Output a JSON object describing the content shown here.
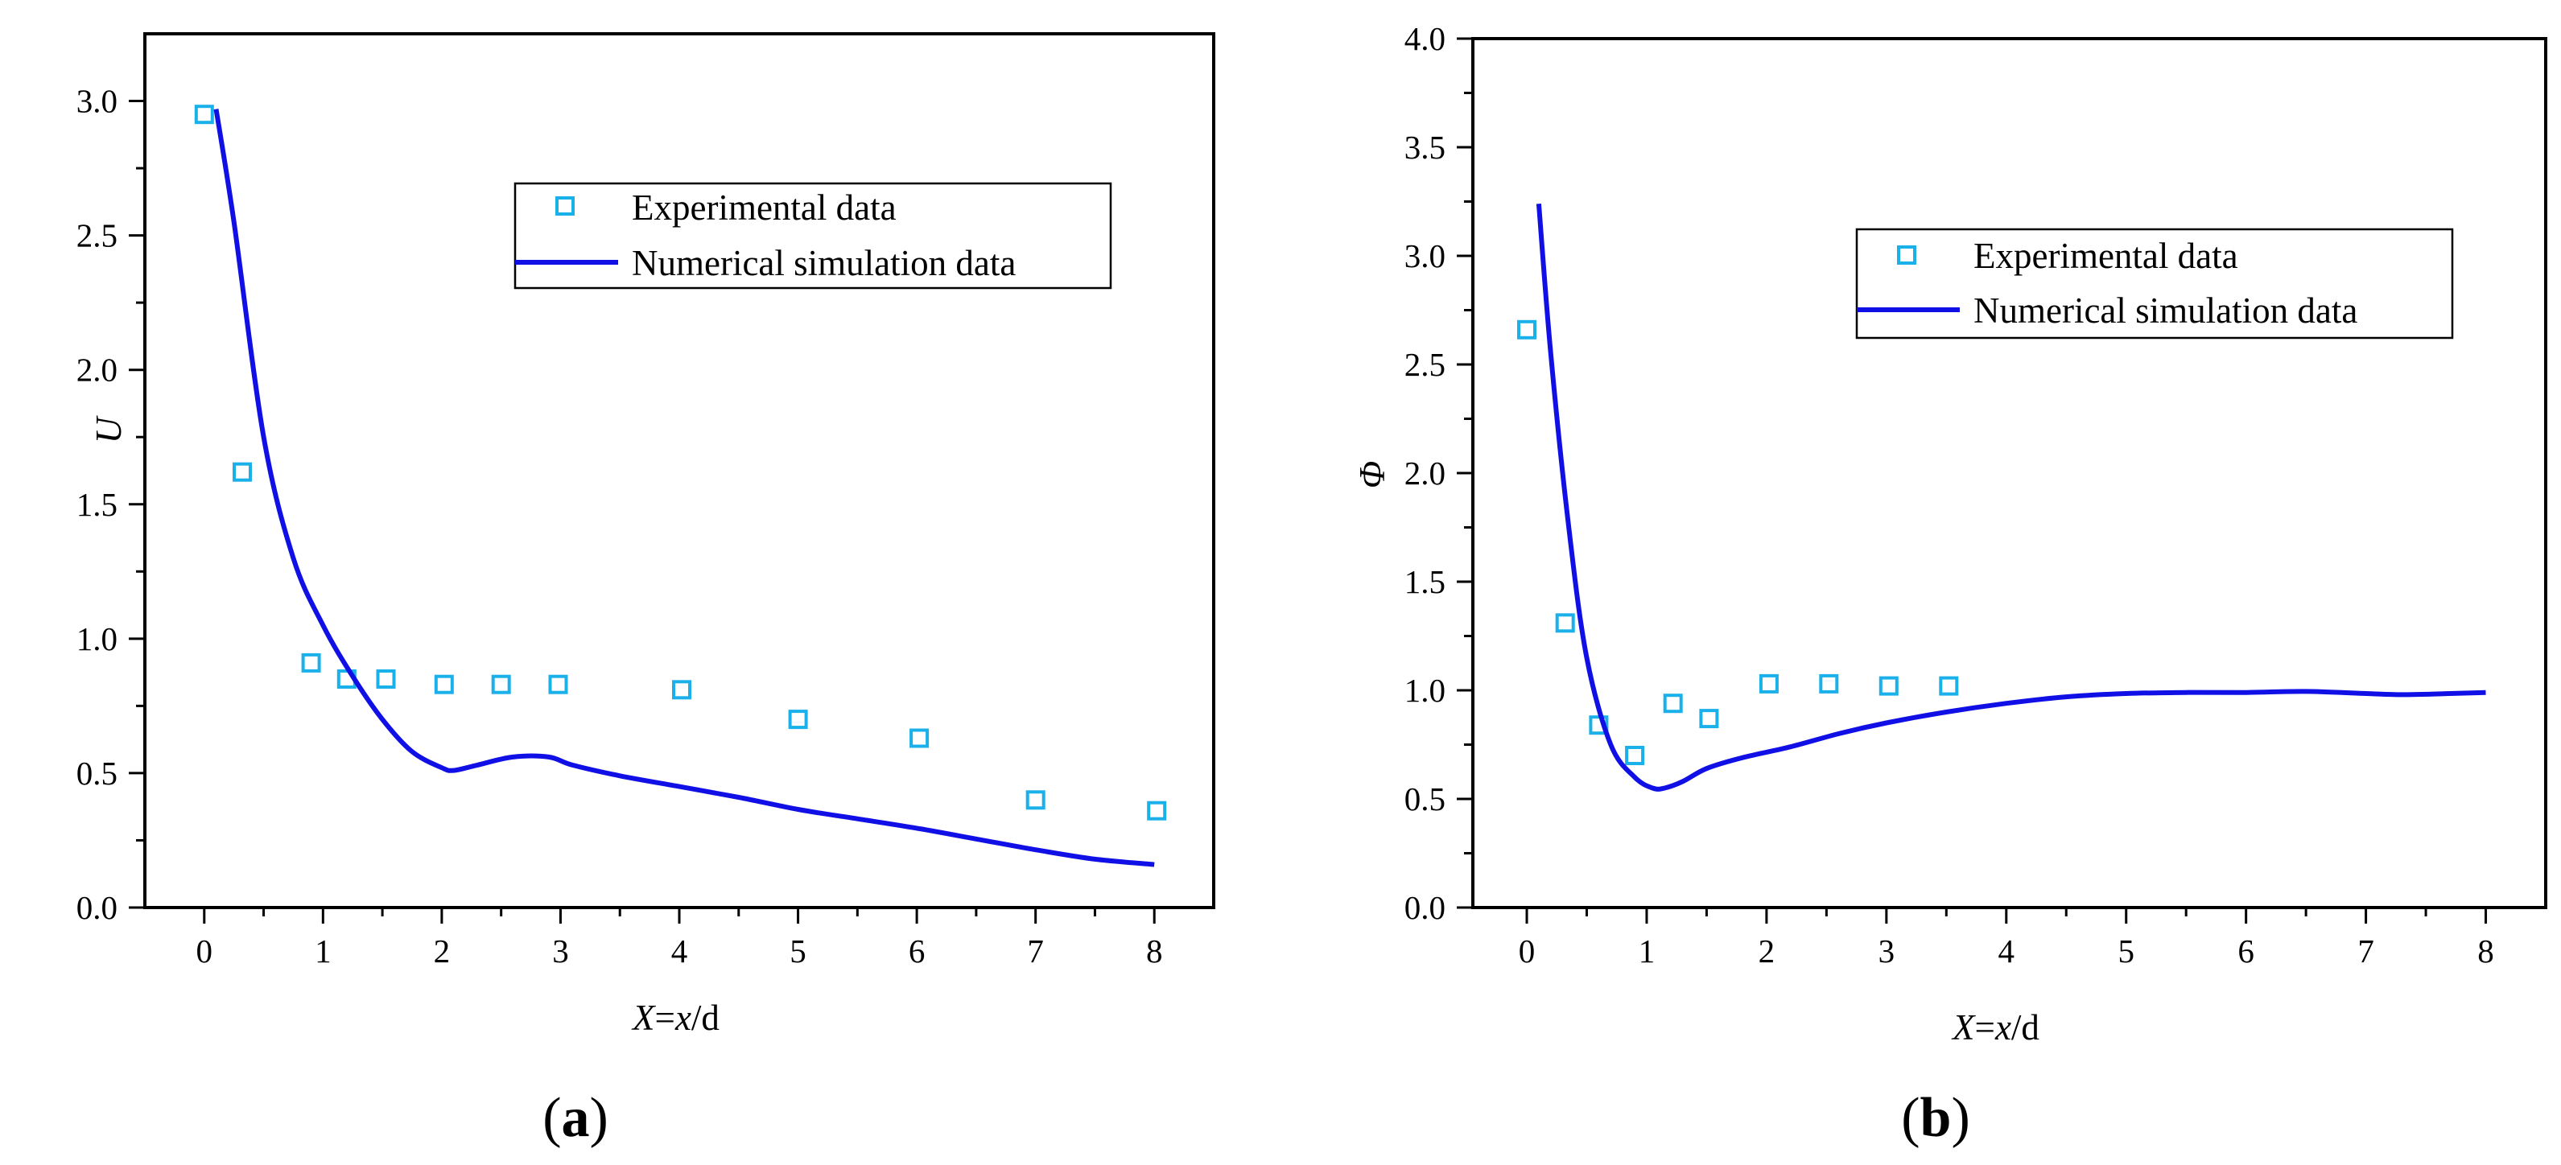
{
  "chart_data": [
    {
      "type": "line",
      "panel": "(a)",
      "panel_letter": "a",
      "xlabel": "X=x/d",
      "ylabel": "U",
      "xlim": [
        -0.5,
        8.5
      ],
      "ylim": [
        0,
        3.25
      ],
      "xticks": [
        0,
        1,
        2,
        3,
        4,
        5,
        6,
        7,
        8
      ],
      "yticks": [
        0.0,
        0.5,
        1.0,
        1.5,
        2.0,
        2.5,
        3.0
      ],
      "ytick_labels": [
        "0.0",
        "0.5",
        "1.0",
        "1.5",
        "2.0",
        "2.5",
        "3.0"
      ],
      "grid": false,
      "legend": {
        "position": "top-right",
        "entries": [
          "Experimental data",
          "Numerical simulation data"
        ]
      },
      "series": [
        {
          "name": "Experimental data",
          "style": "open-square-marker",
          "color": "#1ab0ea",
          "x": [
            0.0,
            0.32,
            0.9,
            1.2,
            1.53,
            2.02,
            2.5,
            2.98,
            4.02,
            5.0,
            6.02,
            7.0,
            8.02
          ],
          "y": [
            2.95,
            1.62,
            0.91,
            0.85,
            0.85,
            0.83,
            0.83,
            0.83,
            0.81,
            0.7,
            0.63,
            0.4,
            0.36
          ]
        },
        {
          "name": "Numerical simulation data",
          "style": "solid-line",
          "color": "#1010e6",
          "x": [
            0.1,
            0.25,
            0.5,
            0.75,
            1.0,
            1.25,
            1.5,
            1.75,
            2.0,
            2.1,
            2.3,
            2.6,
            2.9,
            3.1,
            3.5,
            4.0,
            4.5,
            5.0,
            5.5,
            6.0,
            6.5,
            7.0,
            7.5,
            8.0
          ],
          "y": [
            2.97,
            2.55,
            1.75,
            1.3,
            1.05,
            0.86,
            0.7,
            0.58,
            0.52,
            0.51,
            0.53,
            0.56,
            0.56,
            0.53,
            0.49,
            0.45,
            0.41,
            0.365,
            0.33,
            0.295,
            0.255,
            0.215,
            0.18,
            0.16
          ]
        }
      ]
    },
    {
      "type": "line",
      "panel": "(b)",
      "panel_letter": "b",
      "xlabel": "X=x/d",
      "ylabel": "Φ",
      "xlim": [
        -0.45,
        8.5
      ],
      "ylim": [
        0,
        4.0
      ],
      "xticks": [
        0,
        1,
        2,
        3,
        4,
        5,
        6,
        7,
        8
      ],
      "yticks": [
        0.0,
        0.5,
        1.0,
        1.5,
        2.0,
        2.5,
        3.0,
        3.5,
        4.0
      ],
      "ytick_labels": [
        "0.0",
        "0.5",
        "1.0",
        "1.5",
        "2.0",
        "2.5",
        "3.0",
        "3.5",
        "4.0"
      ],
      "grid": false,
      "legend": {
        "position": "top-right",
        "entries": [
          "Experimental data",
          "Numerical simulation data"
        ]
      },
      "series": [
        {
          "name": "Experimental data",
          "style": "open-square-marker",
          "color": "#1ab0ea",
          "x": [
            0.0,
            0.32,
            0.6,
            0.9,
            1.22,
            1.52,
            2.02,
            2.52,
            3.02,
            3.52
          ],
          "y": [
            2.66,
            1.31,
            0.84,
            0.7,
            0.94,
            0.87,
            1.03,
            1.03,
            1.02,
            1.02
          ]
        },
        {
          "name": "Numerical simulation data",
          "style": "solid-line",
          "color": "#1010e6",
          "x": [
            0.1,
            0.2,
            0.35,
            0.5,
            0.7,
            0.9,
            1.05,
            1.15,
            1.3,
            1.5,
            1.8,
            2.2,
            2.6,
            3.0,
            3.5,
            4.0,
            4.5,
            5.0,
            5.5,
            6.0,
            6.5,
            7.0,
            7.3,
            7.7,
            8.0
          ],
          "y": [
            3.24,
            2.55,
            1.75,
            1.15,
            0.75,
            0.6,
            0.55,
            0.55,
            0.58,
            0.64,
            0.69,
            0.74,
            0.8,
            0.85,
            0.9,
            0.94,
            0.97,
            0.985,
            0.99,
            0.99,
            0.995,
            0.985,
            0.98,
            0.985,
            0.99
          ]
        }
      ]
    }
  ]
}
